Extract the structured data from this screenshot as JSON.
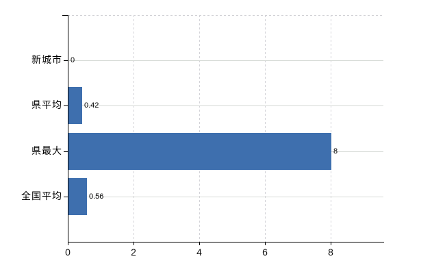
{
  "chart_data": {
    "type": "bar",
    "orientation": "horizontal",
    "title": "",
    "categories": [
      "新城市",
      "県平均",
      "県最大",
      "全国平均"
    ],
    "values": [
      0,
      0.42,
      8,
      0.56
    ],
    "value_labels": [
      "0",
      "0.42",
      "8",
      "0.56"
    ],
    "xticks": [
      0,
      2,
      4,
      6,
      8
    ],
    "xtick_labels": [
      "0",
      "2",
      "4",
      "6",
      "8"
    ],
    "xlim": [
      0,
      9.6
    ],
    "grid": true,
    "legend": false,
    "colors": {
      "bar": "#3e6fae",
      "axis": "#000000",
      "grid_horizontal": "#d6dad6",
      "grid_vertical": "#d3d3d8",
      "text": "#000000"
    }
  }
}
